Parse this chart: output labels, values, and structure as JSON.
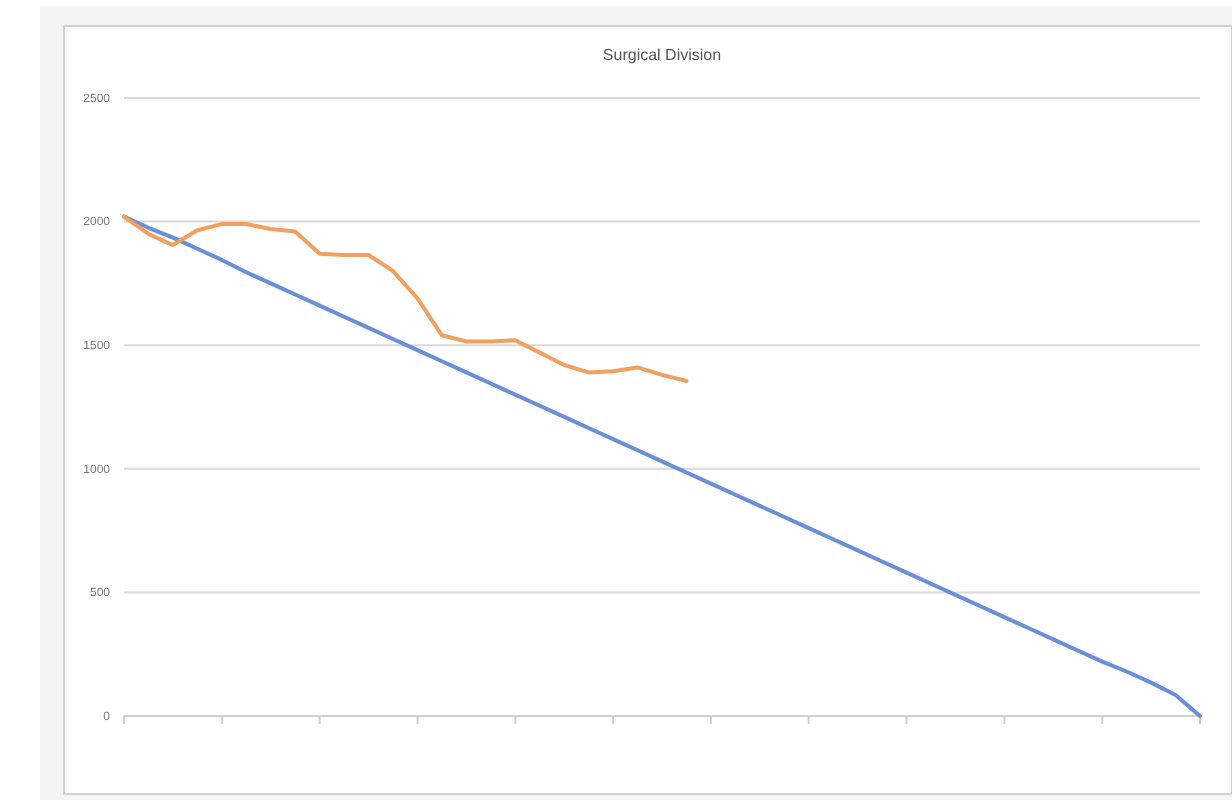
{
  "chart_data": {
    "type": "line",
    "title": "Surgical Division",
    "categories": [
      null,
      null,
      null,
      null,
      null,
      null,
      null,
      null,
      null,
      null,
      null,
      null,
      null,
      null,
      null,
      null,
      null,
      null,
      null,
      null,
      null,
      null,
      null,
      null,
      null,
      null,
      null,
      null,
      null,
      null,
      null,
      null,
      null,
      null,
      null,
      null,
      null,
      null,
      null,
      null,
      null,
      null,
      null,
      null,
      null
    ],
    "series": [
      {
        "color": "#6a8fd8",
        "values": [
          2020,
          1975,
          1935,
          1890,
          1845,
          1795,
          1750,
          1705,
          1660,
          1615,
          1570,
          1525,
          1480,
          1435,
          1390,
          1345,
          1300,
          1255,
          1210,
          1165,
          1120,
          1075,
          1030,
          985,
          940,
          895,
          850,
          805,
          760,
          715,
          670,
          625,
          580,
          535,
          490,
          445,
          400,
          355,
          310,
          265,
          220,
          180,
          135,
          85,
          0
        ]
      },
      {
        "color": "#f0a060",
        "values": [
          2020,
          1950,
          1905,
          1965,
          1990,
          1990,
          1970,
          1960,
          1870,
          1865,
          1865,
          1800,
          1690,
          1540,
          1515,
          1515,
          1520,
          1470,
          1420,
          1390,
          1395,
          1410,
          1380,
          1355,
          null,
          null,
          null,
          null,
          null,
          null,
          null,
          null,
          null,
          null,
          null,
          null,
          null,
          null,
          null,
          null,
          null,
          null,
          null,
          null,
          null
        ]
      }
    ],
    "ylim": [
      0,
      2500
    ],
    "yticks": [
      0,
      500,
      1000,
      1500,
      2000,
      2500
    ],
    "grid": "y"
  }
}
